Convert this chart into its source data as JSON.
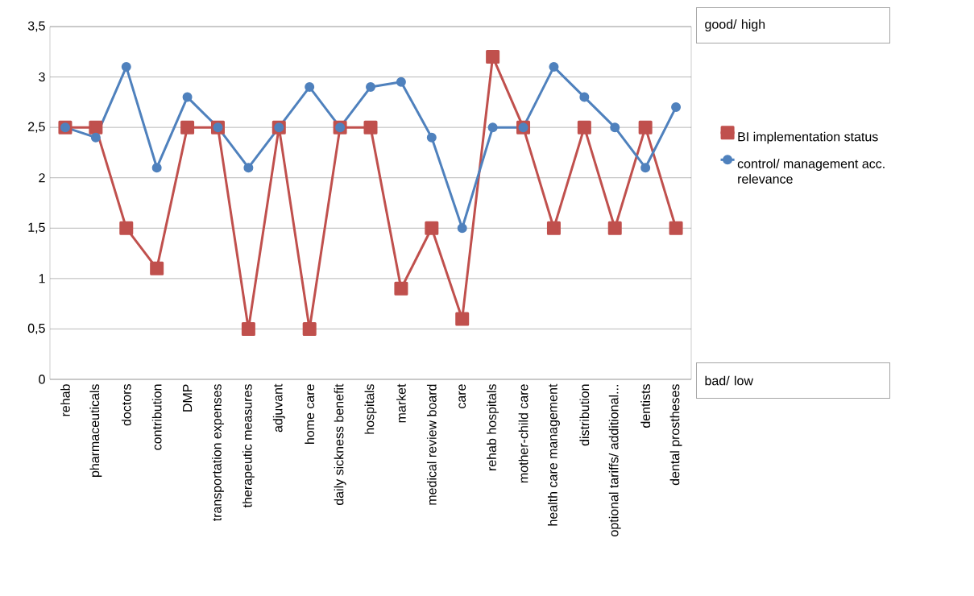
{
  "chart_data": {
    "type": "line",
    "categories": [
      "rehab",
      "pharmaceuticals",
      "doctors",
      "contribution",
      "DMP",
      "transportation expenses",
      "therapeutic measures",
      "adjuvant",
      "home care",
      "daily sickness benefit",
      "hospitals",
      "market",
      "medical review board",
      "care",
      "rehab hospitals",
      "mother-child care",
      "health care management",
      "distribution",
      "optional tariffs/ additional...",
      "dentists",
      "dental prostheses"
    ],
    "series": [
      {
        "name": "BI implementation status",
        "color": "#c0504d",
        "marker": "square",
        "values": [
          2.5,
          2.5,
          1.5,
          1.1,
          2.5,
          2.5,
          0.5,
          2.5,
          0.5,
          2.5,
          2.5,
          0.9,
          1.5,
          0.6,
          3.2,
          2.5,
          1.5,
          2.5,
          1.5,
          2.5,
          1.5
        ]
      },
      {
        "name": "control/ management acc. relevance",
        "color": "#4f81bd",
        "marker": "circle",
        "values": [
          2.5,
          2.4,
          3.1,
          2.1,
          2.8,
          2.5,
          2.1,
          2.5,
          2.9,
          2.5,
          2.9,
          2.95,
          2.4,
          1.5,
          2.5,
          2.5,
          3.1,
          2.8,
          2.5,
          2.1,
          2.7
        ]
      }
    ],
    "ylim": [
      0,
      3.5
    ],
    "yticks": [
      0,
      {
        "value": 0.5,
        "label": "0,5"
      },
      1,
      {
        "value": 1.5,
        "label": "1,5"
      },
      2,
      {
        "value": 2.5,
        "label": "2,5"
      },
      3,
      {
        "value": 3.5,
        "label": "3,5"
      }
    ],
    "grid": "y",
    "legend": "right",
    "annotations": [
      "good/ high",
      "bad/ low"
    ]
  }
}
